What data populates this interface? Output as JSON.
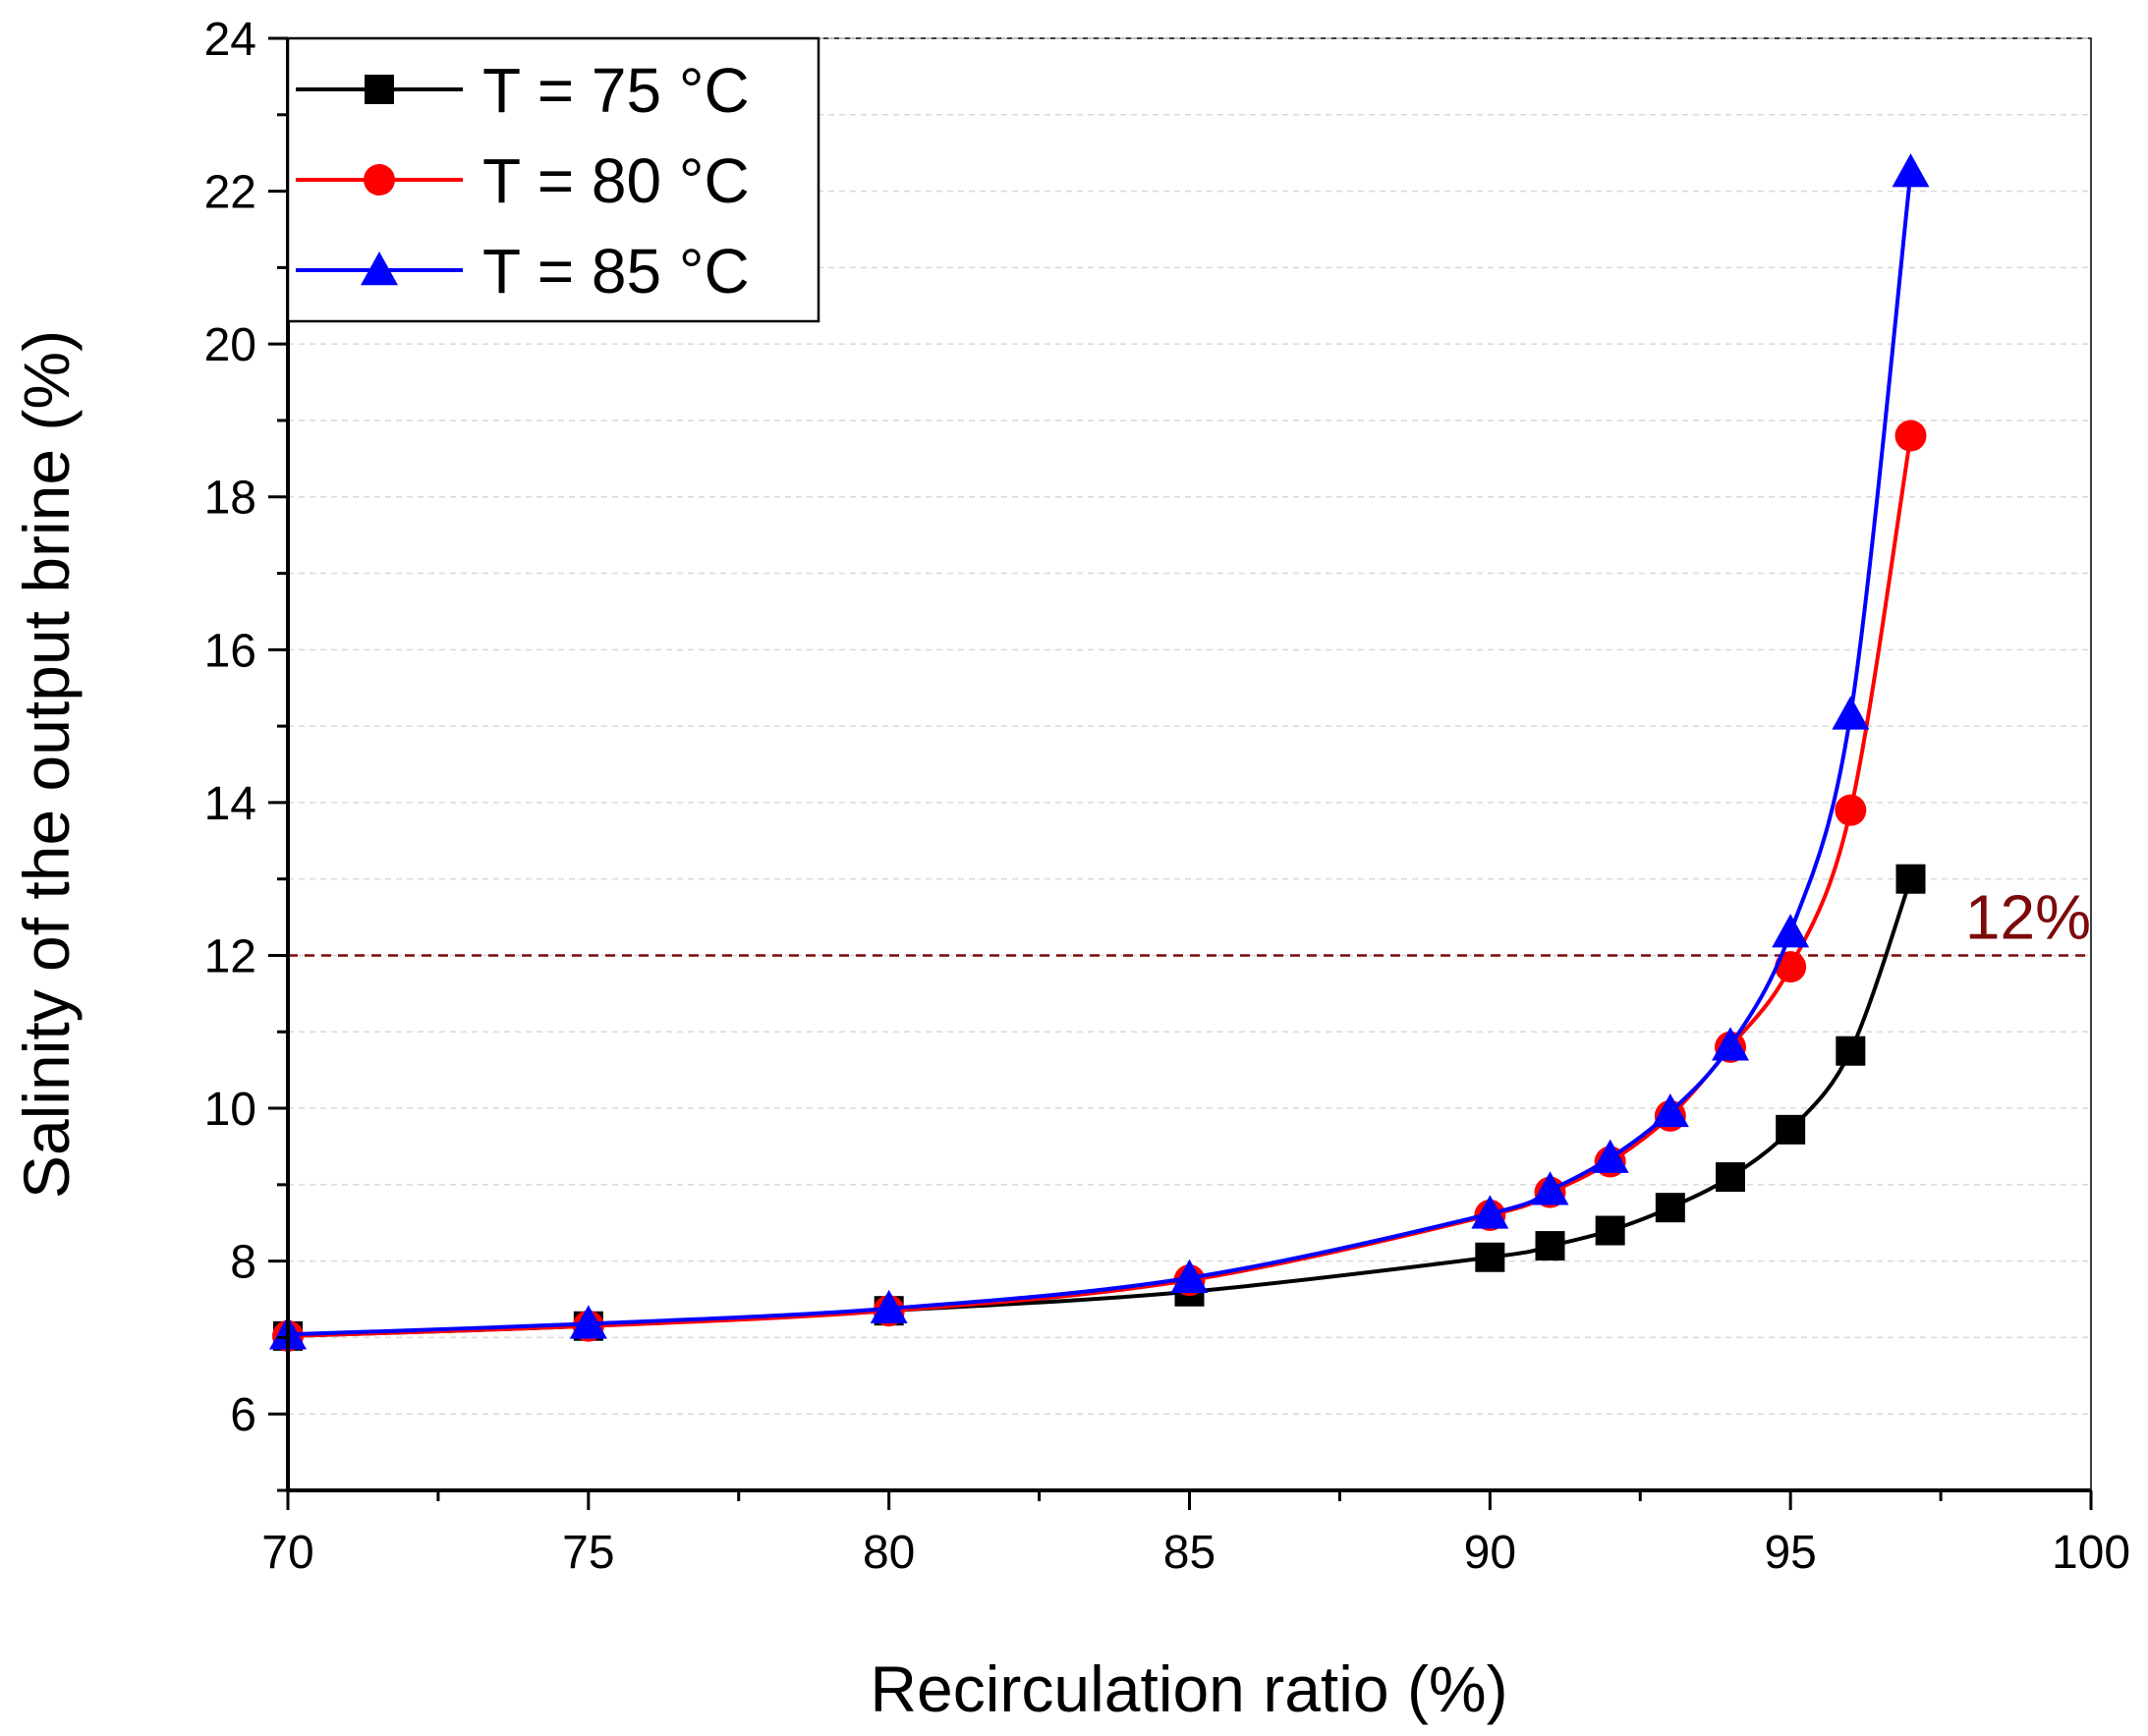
{
  "chart_data": {
    "type": "line",
    "xlabel": "Recirculation ratio (%)",
    "ylabel": "Salinity of the output brine (%)",
    "xlim": [
      70,
      100
    ],
    "ylim": [
      5,
      24
    ],
    "x_ticks": [
      70,
      75,
      80,
      85,
      90,
      95,
      100
    ],
    "y_ticks": [
      6,
      8,
      10,
      12,
      14,
      16,
      18,
      20,
      22,
      24
    ],
    "grid": "horizontal dashed",
    "legend_position": "top-left",
    "x": [
      70,
      75,
      80,
      85,
      90,
      91,
      92,
      93,
      94,
      95,
      96,
      97
    ],
    "series": [
      {
        "name": "T = 75 °C",
        "marker": "square",
        "color": "#000000",
        "values": [
          7.02,
          7.15,
          7.35,
          7.6,
          8.05,
          8.2,
          8.4,
          8.7,
          9.1,
          9.72,
          10.75,
          13.0
        ]
      },
      {
        "name": "T = 80 °C",
        "marker": "circle",
        "color": "#ff0000",
        "values": [
          7.02,
          7.15,
          7.35,
          7.75,
          8.6,
          8.9,
          9.3,
          9.9,
          10.8,
          11.85,
          13.9,
          18.8
        ]
      },
      {
        "name": "T = 85 °C",
        "marker": "triangle",
        "color": "#0000ff",
        "values": [
          7.04,
          7.18,
          7.38,
          7.78,
          8.62,
          8.93,
          9.35,
          9.95,
          10.82,
          12.3,
          15.15,
          22.25
        ]
      }
    ],
    "reference_line": {
      "y": 12,
      "label": "12%",
      "color": "#7b0a0a",
      "style": "dashed"
    }
  }
}
